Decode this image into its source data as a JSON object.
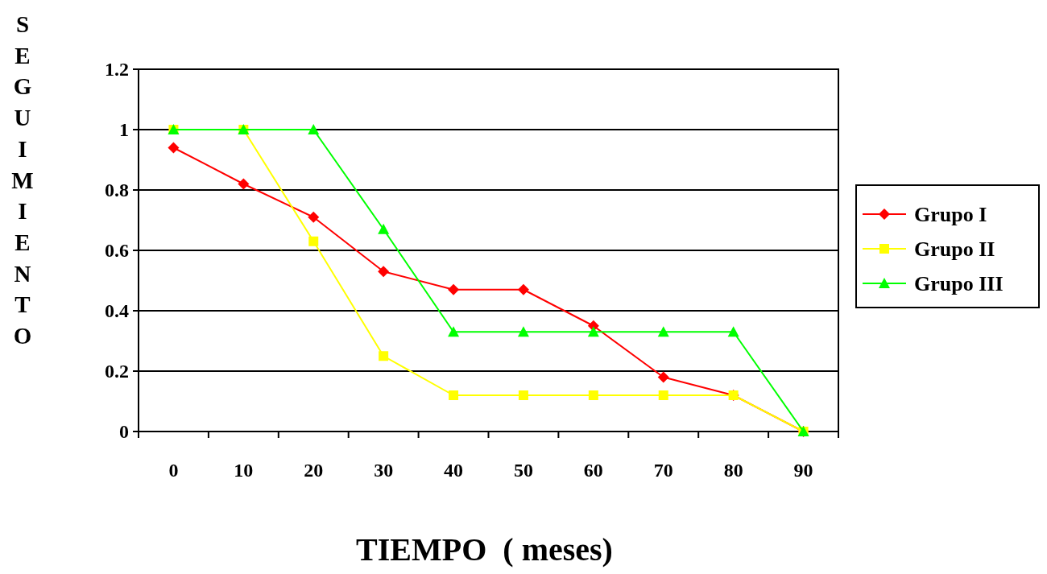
{
  "chart_data": {
    "type": "line",
    "xlabel": "TIEMPO  ( meses)",
    "ylabel": "SEGUIMIENTO",
    "categories": [
      "0",
      "10",
      "20",
      "30",
      "40",
      "50",
      "60",
      "70",
      "80",
      "90"
    ],
    "ylim": [
      0,
      1.2
    ],
    "yticks": [
      0,
      0.2,
      0.4,
      0.6,
      0.8,
      1,
      1.2
    ],
    "grid": "y",
    "legend": "right",
    "series": [
      {
        "name": "Grupo I",
        "color": "#ff0000",
        "marker": "diamond",
        "values": [
          0.94,
          0.82,
          0.71,
          0.53,
          0.47,
          0.47,
          0.35,
          0.18,
          0.12,
          0
        ]
      },
      {
        "name": "Grupo II",
        "color": "#ffff00",
        "marker": "square",
        "values": [
          1,
          1,
          0.63,
          0.25,
          0.12,
          0.12,
          0.12,
          0.12,
          0.12,
          0
        ]
      },
      {
        "name": "Grupo III",
        "color": "#00ff00",
        "marker": "triangle",
        "values": [
          1,
          1,
          1,
          0.67,
          0.33,
          0.33,
          0.33,
          0.33,
          0.33,
          0
        ]
      }
    ]
  }
}
